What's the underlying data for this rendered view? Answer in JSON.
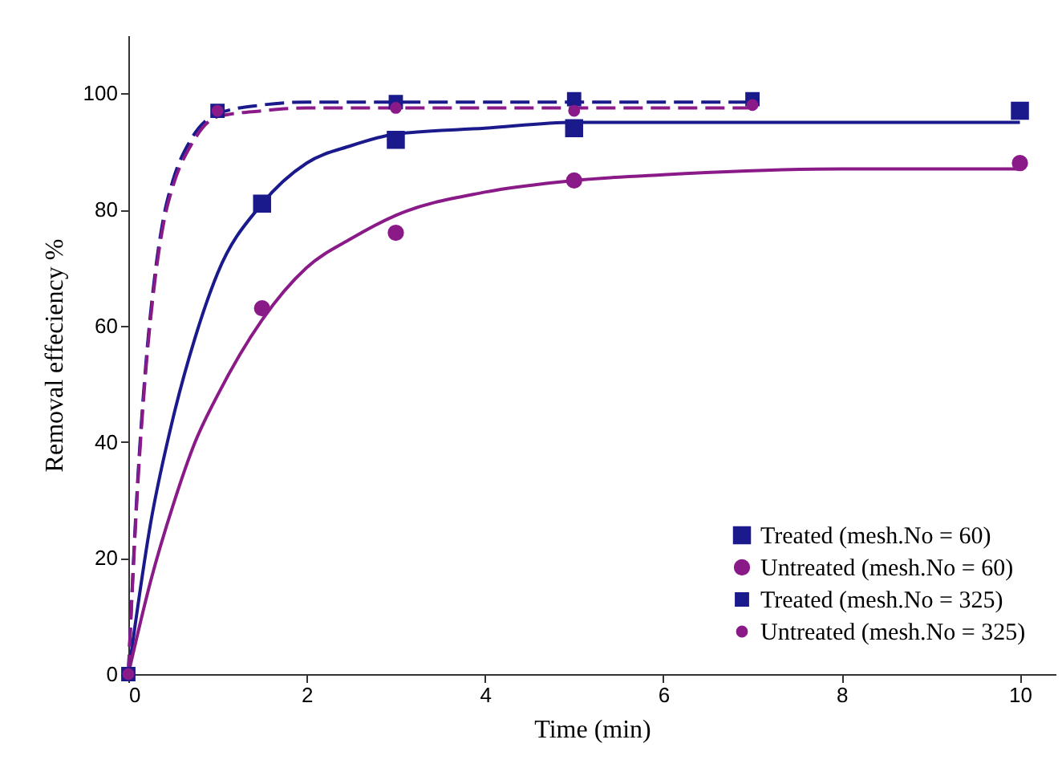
{
  "chart_data": {
    "type": "scatter",
    "xlabel": "Time (min)",
    "ylabel": "Removal effeciency %",
    "xlim": [
      0,
      10.4
    ],
    "ylim": [
      0,
      110
    ],
    "xticks": [
      0,
      2,
      4,
      6,
      8,
      10
    ],
    "yticks": [
      0,
      20,
      40,
      60,
      80,
      100
    ],
    "grid": false,
    "legend": "bottom right",
    "series": [
      {
        "type": "line",
        "color": "#1a1a8c",
        "line_style": "solid",
        "x": [
          0,
          0.25,
          0.5,
          0.75,
          1,
          1.5,
          2,
          2.5,
          3,
          4,
          5,
          6,
          8,
          10
        ],
        "values": [
          0,
          26,
          44,
          58,
          69,
          81,
          88,
          91,
          93,
          94,
          95,
          95,
          95,
          95
        ]
      },
      {
        "type": "line",
        "color": "#8b1a89",
        "line_style": "solid",
        "x": [
          0,
          0.25,
          0.5,
          0.75,
          1,
          1.5,
          2,
          2.5,
          3,
          4,
          5,
          6,
          8,
          10
        ],
        "values": [
          0,
          16,
          29,
          40,
          48,
          61,
          70,
          75,
          79,
          83,
          85,
          86,
          87,
          87
        ]
      },
      {
        "type": "line",
        "color": "#1a1a8c",
        "line_style": "dashed",
        "x": [
          0,
          0.1,
          0.2,
          0.3,
          0.4,
          0.5,
          0.7,
          1,
          1.5,
          2,
          3,
          5,
          7
        ],
        "values": [
          0,
          32,
          54,
          69,
          79,
          85,
          92,
          96.5,
          98,
          98.5,
          98.5,
          98.5,
          98.5
        ]
      },
      {
        "type": "line",
        "color": "#8b1a89",
        "line_style": "dashed",
        "x": [
          0,
          0.1,
          0.2,
          0.3,
          0.4,
          0.5,
          0.7,
          1,
          1.5,
          2,
          3,
          5,
          7
        ],
        "values": [
          0,
          31,
          53,
          68,
          78,
          84,
          91,
          96,
          97,
          97.5,
          97.5,
          97.5,
          97.5
        ]
      },
      {
        "name": "Treated (mesh.No = 60)",
        "color": "#1a1a8c",
        "marker": "square",
        "x": [
          1.5,
          3,
          5,
          10
        ],
        "values": [
          81,
          92,
          94,
          97
        ]
      },
      {
        "name": "Untreated (mesh.No = 60)",
        "color": "#8b1a89",
        "marker": "circle",
        "x": [
          1.5,
          3,
          5,
          10
        ],
        "values": [
          63,
          76,
          85,
          88
        ]
      },
      {
        "name": "Treated (mesh.No = 325)",
        "color": "#1a1a8c",
        "marker": "square",
        "x": [
          0,
          1,
          3,
          5,
          7
        ],
        "values": [
          0,
          97,
          98.5,
          99,
          99
        ]
      },
      {
        "name": "Untreated (mesh.No = 325)",
        "color": "#8b1a89",
        "marker": "circle",
        "x": [
          0,
          1,
          3,
          5,
          7
        ],
        "values": [
          0,
          97,
          97.5,
          97,
          98
        ]
      }
    ]
  }
}
